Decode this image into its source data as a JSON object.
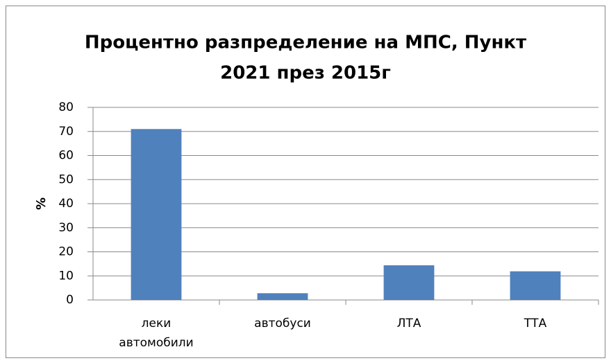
{
  "chart_data": {
    "type": "bar",
    "title": [
      "Процентно разпределение на МПС, Пункт",
      "2021 през 2015г"
    ],
    "y_label": "%",
    "categories": [
      "леки автомобили",
      "автобуси",
      "ЛТА",
      "ТТА"
    ],
    "values": [
      71,
      2.8,
      14.4,
      11.9
    ],
    "color": "#4f81bd",
    "ylim": [
      0,
      80
    ],
    "yticks": [
      0,
      10,
      20,
      30,
      40,
      50,
      60,
      70,
      80
    ],
    "grid": true
  }
}
